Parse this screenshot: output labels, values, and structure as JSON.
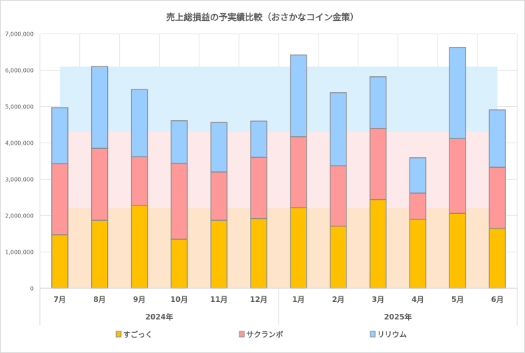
{
  "chart_data": {
    "type": "bar",
    "stacked": true,
    "title": "売上総損益の予実績比較（おさかなコイン金策）",
    "xlabel": "",
    "ylabel": "",
    "ylim": [
      0,
      7000000
    ],
    "yticks": [
      0,
      1000000,
      2000000,
      3000000,
      4000000,
      5000000,
      6000000,
      7000000
    ],
    "ytick_labels": [
      "0",
      "1,000,000",
      "2,000,000",
      "3,000,000",
      "4,000,000",
      "5,000,000",
      "6,000,000",
      "7,000,000"
    ],
    "grid": true,
    "categories": [
      "7月",
      "8月",
      "9月",
      "10月",
      "11月",
      "12月",
      "1月",
      "2月",
      "3月",
      "4月",
      "5月",
      "6月"
    ],
    "groups": [
      {
        "label": "2024年",
        "count": 6
      },
      {
        "label": "2025年",
        "count": 6
      }
    ],
    "series": [
      {
        "name": "すごっく",
        "color": "#FFC000",
        "values": [
          1470000,
          1870000,
          2280000,
          1350000,
          1870000,
          1920000,
          2220000,
          1710000,
          2440000,
          1900000,
          2060000,
          1650000
        ]
      },
      {
        "name": "サクランボ",
        "color": "#FF9999",
        "values": [
          1960000,
          1980000,
          1340000,
          2090000,
          1330000,
          1680000,
          1950000,
          1660000,
          1960000,
          720000,
          2060000,
          1680000
        ]
      },
      {
        "name": "リリウム",
        "color": "#99CCFF",
        "values": [
          1540000,
          2250000,
          1850000,
          1170000,
          1360000,
          1000000,
          2250000,
          2010000,
          1420000,
          970000,
          2510000,
          1580000
        ]
      }
    ],
    "target_bands": [
      {
        "series": "すごっく",
        "from": 0,
        "to": 2200000,
        "color": "#FDE4CA"
      },
      {
        "series": "サクランボ",
        "from": 2200000,
        "to": 4300000,
        "color": "#FEE9EA"
      },
      {
        "series": "リリウム",
        "from": 4300000,
        "to": 6100000,
        "color": "#DBF0FD"
      }
    ],
    "legend": "bottom"
  }
}
